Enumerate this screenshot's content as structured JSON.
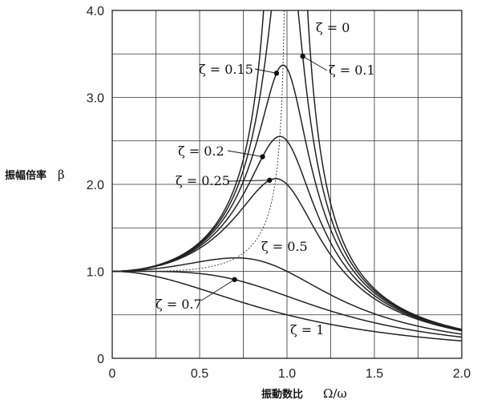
{
  "chart_data": {
    "type": "line",
    "xlabel_text": "振動数比",
    "xlabel_symbol": "Ω/ω",
    "ylabel_text": "振幅倍率",
    "ylabel_symbol": "β",
    "xlim": [
      0,
      2.0
    ],
    "ylim": [
      0,
      4.0
    ],
    "x_ticks": [
      0,
      0.5,
      1.0,
      1.5,
      2.0
    ],
    "x_tick_labels": [
      "0",
      "0.5",
      "1.0",
      "1.5",
      "2.0"
    ],
    "y_ticks": [
      0,
      1.0,
      2.0,
      3.0,
      4.0
    ],
    "y_tick_labels": [
      "0",
      "1.0",
      "2.0",
      "3.0",
      "4.0"
    ],
    "grid": true,
    "x_grid_step": 0.25,
    "y_grid_step": 0.5,
    "series": [
      {
        "zeta": 0,
        "label": "ζ = 0"
      },
      {
        "zeta": 0.1,
        "label": "ζ = 0.1"
      },
      {
        "zeta": 0.15,
        "label": "ζ = 0.15"
      },
      {
        "zeta": 0.2,
        "label": "ζ = 0.2"
      },
      {
        "zeta": 0.25,
        "label": "ζ = 0.25"
      },
      {
        "zeta": 0.5,
        "label": "ζ = 0.5"
      },
      {
        "zeta": 0.7,
        "label": "ζ = 0.7"
      },
      {
        "zeta": 1,
        "label": "ζ = 1"
      }
    ],
    "peak_curve": {
      "style": "dotted",
      "x_asymptote": 1.0
    },
    "marked_points": [
      {
        "zeta": 0.15,
        "x": 0.94
      },
      {
        "zeta": 0.1,
        "x": 1.09
      },
      {
        "zeta": 0.2,
        "x": 0.86
      },
      {
        "zeta": 0.25,
        "x": 0.9
      },
      {
        "zeta": 0.7,
        "x": 0.7
      }
    ]
  }
}
